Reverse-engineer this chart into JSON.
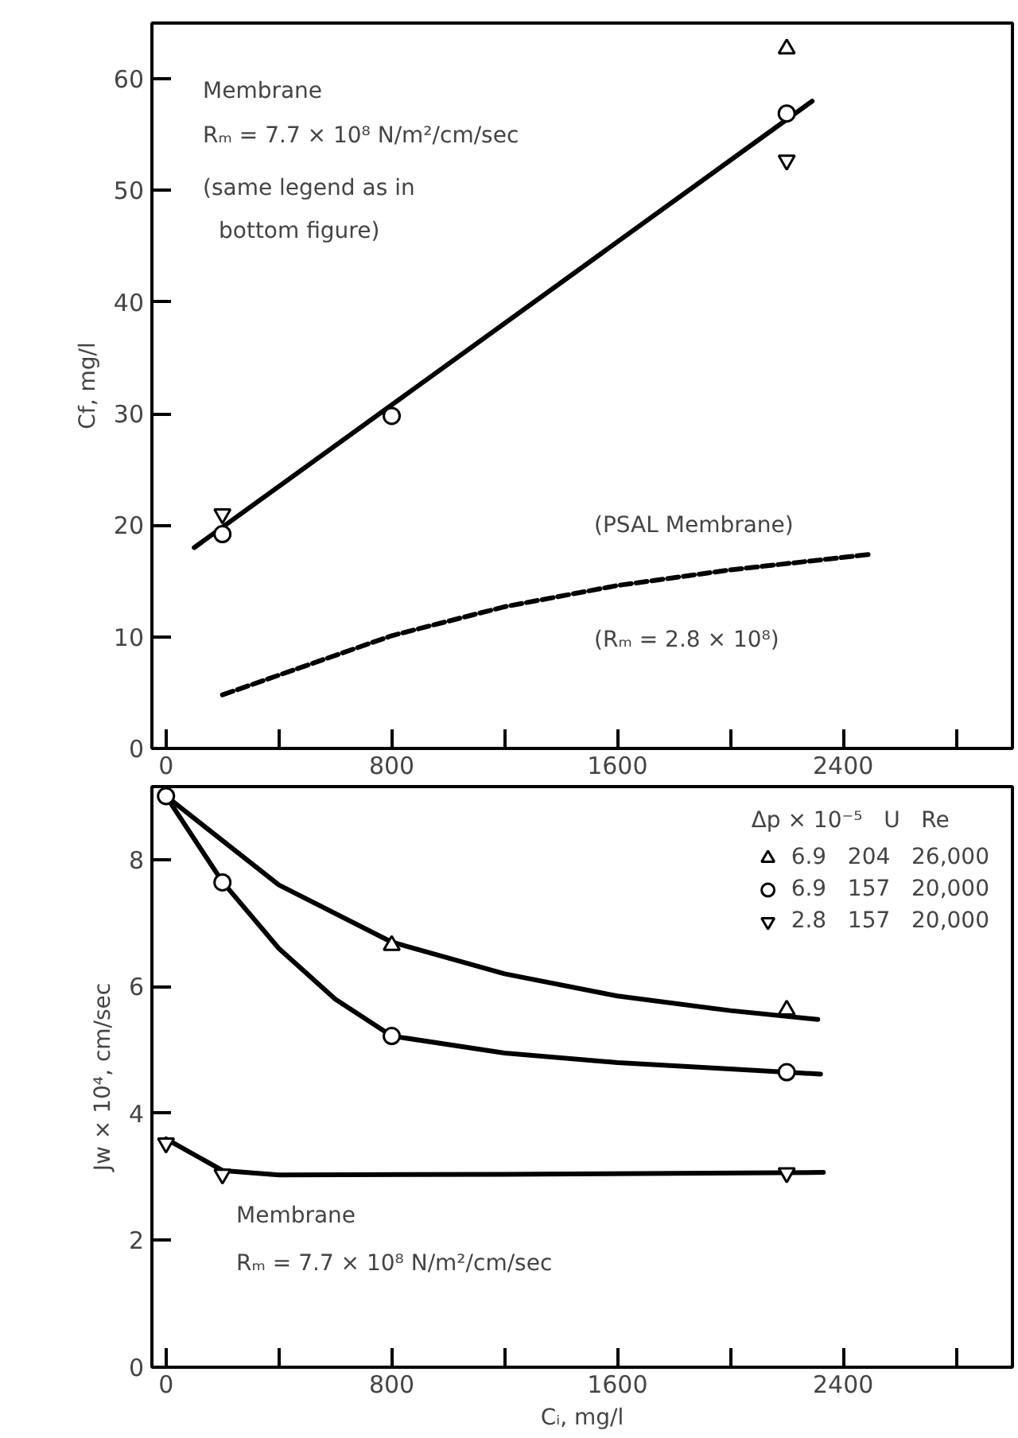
{
  "chart_data": [
    {
      "type": "scatter",
      "ylabel": "Cf, mg/l",
      "xlim": [
        -50,
        3000
      ],
      "ylim": [
        0,
        65
      ],
      "xticks": [
        0,
        {
          "value": 400,
          "label": null
        },
        800,
        {
          "value": 1200,
          "label": null
        },
        1600,
        {
          "value": 2000,
          "label": null
        },
        2400,
        {
          "value": 2800,
          "label": null
        }
      ],
      "yticks": [
        0,
        10,
        20,
        30,
        40,
        50,
        60
      ],
      "grid": false,
      "legend": false,
      "series": [
        {
          "marker": "triangle",
          "color": "#000000",
          "x": [
            2200
          ],
          "values": [
            62.7
          ]
        },
        {
          "marker": "circle",
          "color": "#000000",
          "x": [
            200,
            800,
            2200
          ],
          "values": [
            19.2,
            29.8,
            56.9
          ]
        },
        {
          "marker": "triangle",
          "color": "#000000",
          "x": [
            200,
            2200
          ],
          "values": [
            21.0,
            52.7
          ]
        },
        {
          "type": "line",
          "line_style": "solid",
          "color": "#000000",
          "x": [
            100,
            2290
          ],
          "values": [
            18.0,
            58.0
          ]
        },
        {
          "type": "line",
          "line_style": "dashed",
          "color": "#000000",
          "x": [
            200,
            800,
            1200,
            1600,
            2000,
            2500
          ],
          "values": [
            4.8,
            10.1,
            12.7,
            14.6,
            16.0,
            17.4
          ]
        }
      ],
      "annotations": [
        "Membrane",
        "Rₘ = 7.7 × 10⁸ N/m²/cm/sec",
        "(same legend as in",
        "bottom figure)",
        "(PSAL Membrane)",
        "(Rₘ = 2.8 × 10⁸)"
      ]
    },
    {
      "type": "scatter",
      "xlabel": "Cᵢ, mg/l",
      "ylabel": "Jw × 10⁴, cm/sec",
      "xlim": [
        -50,
        3000
      ],
      "ylim": [
        0,
        9.15
      ],
      "xticks": [
        0,
        {
          "value": 400,
          "label": null
        },
        800,
        {
          "value": 1200,
          "label": null
        },
        1600,
        {
          "value": 2000,
          "label": null
        },
        2400,
        {
          "value": 2800,
          "label": null
        }
      ],
      "yticks": [
        0,
        2,
        4,
        6,
        8
      ],
      "grid": false,
      "legend": "top right",
      "legend_title": "Δp × 10⁻⁵   U   Re",
      "series": [
        {
          "name": "6.9   204   26,000",
          "marker": "triangle",
          "color": "#000000",
          "x": [
            800,
            2200
          ],
          "values": [
            6.65,
            5.63
          ]
        },
        {
          "name": "6.9   157   20,000",
          "marker": "circle",
          "color": "#000000",
          "x": [
            0,
            200,
            800,
            2200
          ],
          "values": [
            9.0,
            7.64,
            5.22,
            4.65
          ]
        },
        {
          "name": "2.8   157   20,000",
          "marker": "triangle",
          "color": "#000000",
          "x": [
            0,
            200,
            2200
          ],
          "values": [
            3.53,
            3.04,
            3.06
          ]
        },
        {
          "type": "line",
          "line_style": "solid",
          "color": "#000000",
          "x": [
            0,
            400,
            800,
            1200,
            1600,
            2000,
            2310
          ],
          "values": [
            9.0,
            7.6,
            6.7,
            6.2,
            5.85,
            5.62,
            5.48
          ]
        },
        {
          "type": "line",
          "line_style": "solid",
          "color": "#000000",
          "x": [
            0,
            200,
            400,
            600,
            800,
            1200,
            1600,
            2000,
            2320
          ],
          "values": [
            9.0,
            7.65,
            6.6,
            5.8,
            5.22,
            4.95,
            4.8,
            4.7,
            4.62
          ]
        },
        {
          "type": "line",
          "line_style": "solid",
          "color": "#000000",
          "x": [
            0,
            200,
            400,
            1200,
            2330
          ],
          "values": [
            3.6,
            3.1,
            3.03,
            3.04,
            3.07
          ]
        }
      ],
      "annotations": [
        "Membrane",
        "Rₘ = 7.7 × 10⁸ N/m²/cm/sec"
      ]
    }
  ]
}
